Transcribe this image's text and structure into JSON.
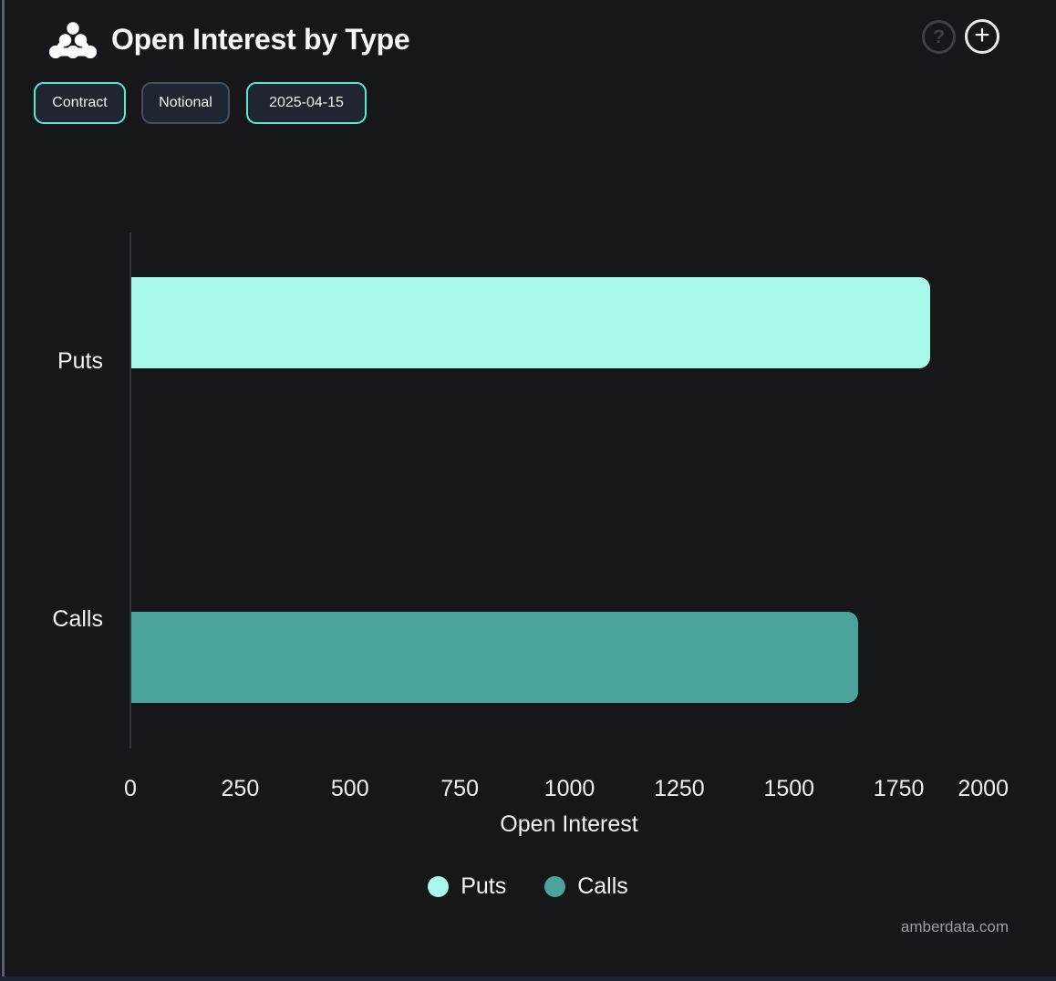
{
  "header": {
    "title": "Open Interest by Type",
    "help_symbol": "?",
    "add_symbol": "+"
  },
  "toolbar": {
    "buttons": [
      {
        "label": "Contract",
        "active": true
      },
      {
        "label": "Notional",
        "active": false
      },
      {
        "label": "2025-04-15",
        "active": true
      }
    ]
  },
  "chart_data": {
    "type": "bar",
    "orientation": "horizontal",
    "title": "Open Interest by Type",
    "categories": [
      "Puts",
      "Calls"
    ],
    "series": [
      {
        "name": "Puts",
        "color": "#a9f9e8",
        "value": 1820
      },
      {
        "name": "Calls",
        "color": "#4aa49b",
        "value": 1655
      }
    ],
    "xlabel": "Open Interest",
    "xlim": [
      0,
      2000
    ],
    "xticks": [
      0,
      250,
      500,
      750,
      1000,
      1250,
      1500,
      1750,
      2000
    ],
    "grid": false,
    "legend": {
      "position": "bottom",
      "entries": [
        "Puts",
        "Calls"
      ]
    }
  },
  "colors": {
    "background": "#16171a",
    "accent_teal": "#5ee6cd",
    "puts_bar": "#a9f9e8",
    "calls_bar": "#4aa49b"
  },
  "footer": {
    "watermark": "amberdata.com"
  }
}
